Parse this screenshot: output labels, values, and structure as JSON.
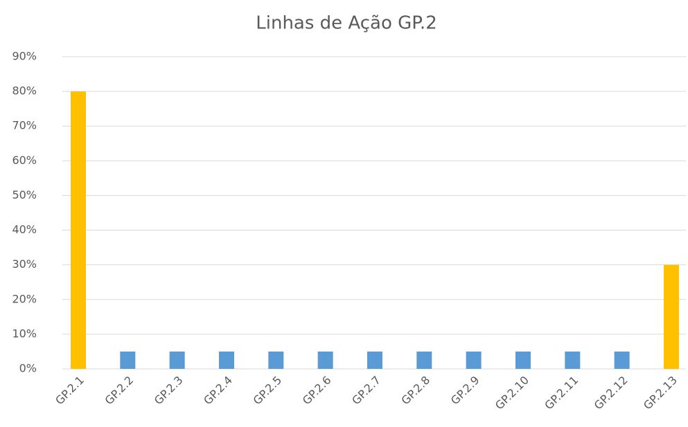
{
  "chart_data": {
    "type": "bar",
    "title": "Linhas de Ação GP.2",
    "categories": [
      "GP.2.1",
      "GP.2.2",
      "GP.2.3",
      "GP.2.4",
      "GP.2.5",
      "GP.2.6",
      "GP.2.7",
      "GP.2.8",
      "GP.2.9",
      "GP.2.10",
      "GP.2.11",
      "GP.2.12",
      "GP.2.13"
    ],
    "values": [
      80,
      5,
      5,
      5,
      5,
      5,
      5,
      5,
      5,
      5,
      5,
      5,
      30
    ],
    "colors": [
      "#ffc000",
      "#5b9bd5",
      "#5b9bd5",
      "#5b9bd5",
      "#5b9bd5",
      "#5b9bd5",
      "#5b9bd5",
      "#5b9bd5",
      "#5b9bd5",
      "#5b9bd5",
      "#5b9bd5",
      "#5b9bd5",
      "#ffc000"
    ],
    "ylim": [
      0,
      90
    ],
    "yticks": [
      {
        "value": 0,
        "label": "0%"
      },
      {
        "value": 10,
        "label": "10%"
      },
      {
        "value": 20,
        "label": "20%"
      },
      {
        "value": 30,
        "label": "30%"
      },
      {
        "value": 40,
        "label": "40%"
      },
      {
        "value": 50,
        "label": "50%"
      },
      {
        "value": 60,
        "label": "60%"
      },
      {
        "value": 70,
        "label": "70%"
      },
      {
        "value": 80,
        "label": "80%"
      },
      {
        "value": 90,
        "label": "90%"
      }
    ],
    "grid": true
  }
}
